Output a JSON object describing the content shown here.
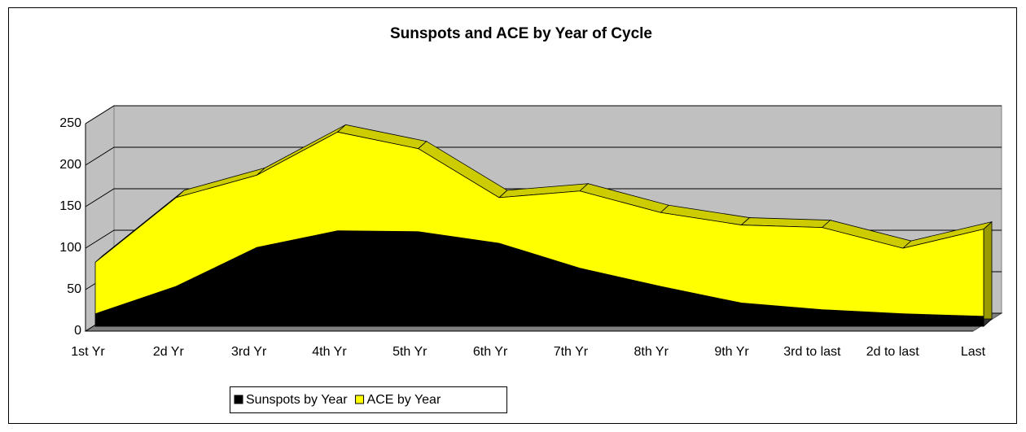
{
  "chart_data": {
    "type": "area",
    "stacked": true,
    "title": "Sunspots and ACE by Year of Cycle",
    "categories": [
      "1st Yr",
      "2d Yr",
      "3rd Yr",
      "4th Yr",
      "5th Yr",
      "6th Yr",
      "7th Yr",
      "8th Yr",
      "9th Yr",
      "3rd to last",
      "2d to last",
      "Last"
    ],
    "series": [
      {
        "name": "Sunspots by Year",
        "color": "#000000",
        "values": [
          15,
          48,
          95,
          115,
          114,
          100,
          70,
          48,
          28,
          20,
          15,
          12
        ]
      },
      {
        "name": "ACE by Year",
        "color": "#ffff00",
        "values": [
          62,
          107,
          87,
          119,
          100,
          55,
          93,
          89,
          94,
          99,
          79,
          105
        ]
      }
    ],
    "ylim": [
      0,
      250
    ],
    "yticks": [
      0,
      50,
      100,
      150,
      200,
      250
    ],
    "grid": true,
    "legend": "bottom"
  }
}
